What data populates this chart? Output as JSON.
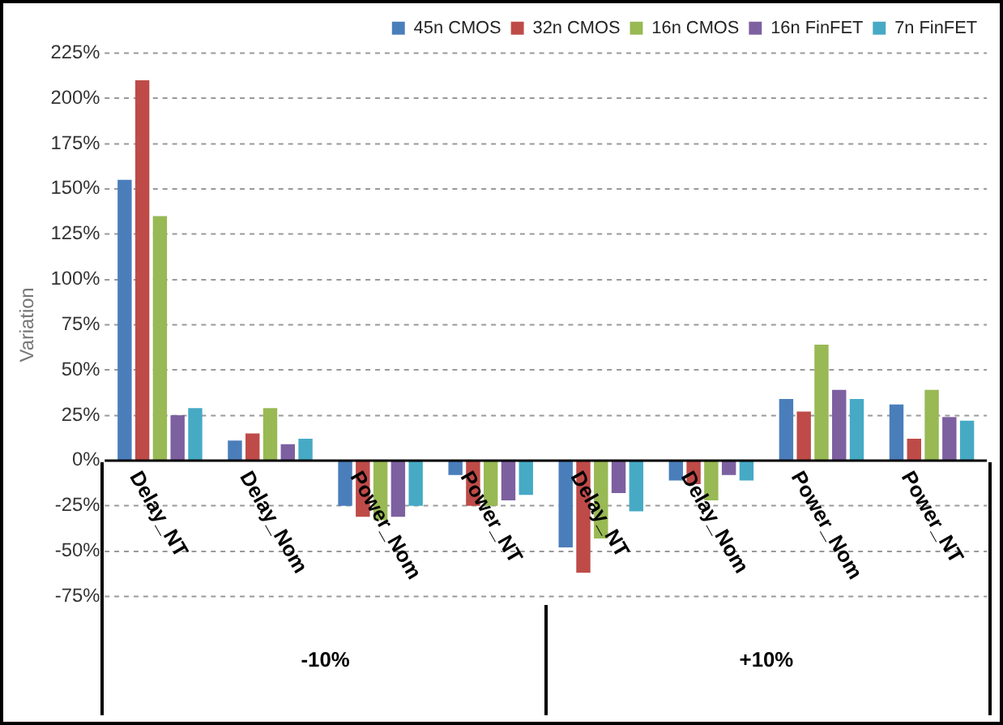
{
  "chart_data": {
    "type": "bar",
    "ylabel": "Variation",
    "categories": [
      "Delay_NT",
      "Delay_Nom",
      "Power_Nom",
      "Power_NT",
      "Delay_NT",
      "Delay_Nom",
      "Power_Nom",
      "Power_NT"
    ],
    "annotations": [
      "-10%",
      "+10%"
    ],
    "series": [
      {
        "name": "45n CMOS",
        "color": "#4a7ebb",
        "values": [
          155,
          11,
          -25,
          -8,
          -48,
          -11,
          34,
          31
        ]
      },
      {
        "name": "32n CMOS",
        "color": "#be4b48",
        "values": [
          210,
          15,
          -31,
          -25,
          -62,
          -13,
          27,
          12
        ]
      },
      {
        "name": "16n CMOS",
        "color": "#98b954",
        "values": [
          135,
          29,
          -33,
          -25,
          -43,
          -22,
          64,
          39
        ]
      },
      {
        "name": "16n FinFET",
        "color": "#7d60a0",
        "values": [
          25,
          9,
          -31,
          -22,
          -18,
          -8,
          39,
          24
        ]
      },
      {
        "name": "7n FinFET",
        "color": "#46aac5",
        "values": [
          29,
          12,
          -25,
          -19,
          -28,
          -11,
          34,
          22
        ]
      }
    ],
    "ylim": [
      -75,
      225
    ],
    "yticks": [
      {
        "value": -75,
        "label": "-75%"
      },
      {
        "value": -50,
        "label": "-50%"
      },
      {
        "value": -25,
        "label": "-25%"
      },
      {
        "value": 0,
        "label": "0%"
      },
      {
        "value": 25,
        "label": "25%"
      },
      {
        "value": 50,
        "label": "50%"
      },
      {
        "value": 75,
        "label": "75%"
      },
      {
        "value": 100,
        "label": "100%"
      },
      {
        "value": 125,
        "label": "125%"
      },
      {
        "value": 150,
        "label": "150%"
      },
      {
        "value": 175,
        "label": "175%"
      },
      {
        "value": 200,
        "label": "200%"
      },
      {
        "value": 225,
        "label": "225%"
      }
    ],
    "grid": "y",
    "legend": "top right"
  }
}
